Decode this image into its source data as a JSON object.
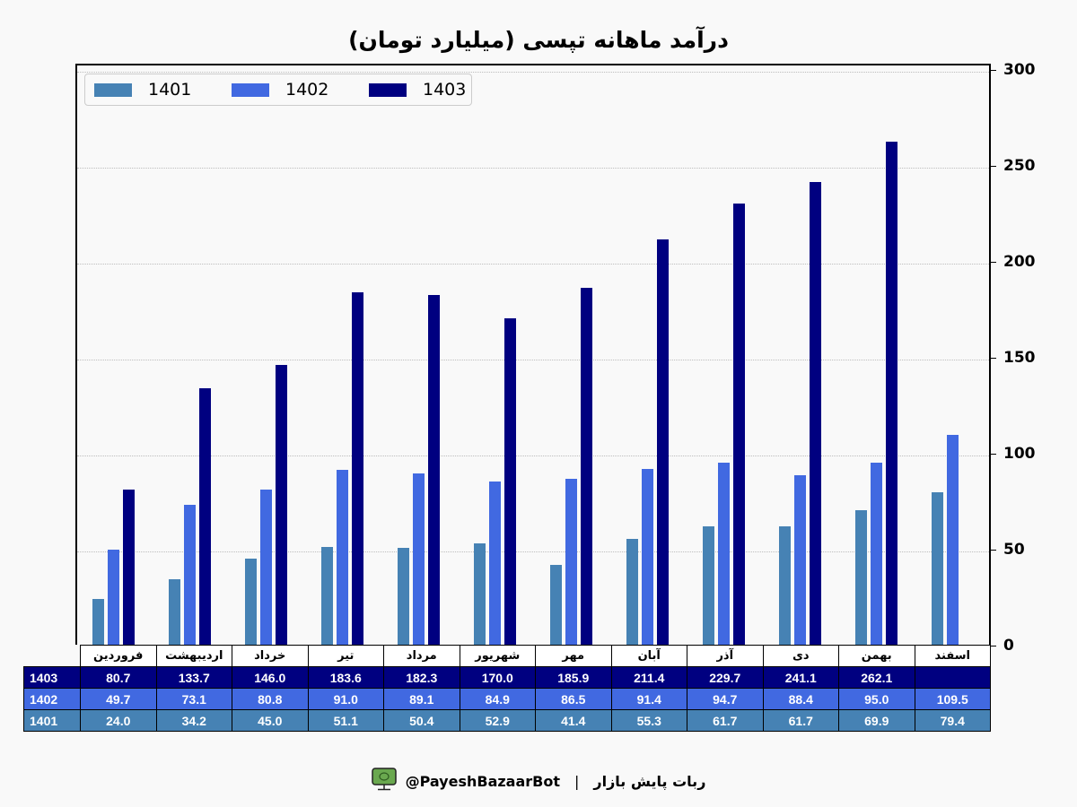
{
  "chart_data": {
    "type": "bar",
    "title": "درآمد ماهانه تپسی (میلیارد تومان)",
    "xlabel": "",
    "ylabel": "",
    "ylim": [
      0,
      300
    ],
    "yticks": [
      0,
      50,
      100,
      150,
      200,
      250,
      300
    ],
    "grid": true,
    "legend_position": "upper left",
    "categories": [
      "فروردین",
      "اردیبهشت",
      "خرداد",
      "تیر",
      "مرداد",
      "شهریور",
      "مهر",
      "آبان",
      "آذر",
      "دی",
      "بهمن",
      "اسفند"
    ],
    "series": [
      {
        "name": "1401",
        "color": "#4682b4",
        "values": [
          24.0,
          34.2,
          45.0,
          51.1,
          50.4,
          52.9,
          41.4,
          55.3,
          61.7,
          61.7,
          69.9,
          79.4
        ]
      },
      {
        "name": "1402",
        "color": "#4169e1",
        "values": [
          49.7,
          73.1,
          80.8,
          91.0,
          89.1,
          84.9,
          86.5,
          91.4,
          94.7,
          88.4,
          95.0,
          109.5
        ]
      },
      {
        "name": "1403",
        "color": "#000080",
        "values": [
          80.7,
          133.7,
          146.0,
          183.6,
          182.3,
          170.0,
          185.9,
          211.4,
          229.7,
          241.1,
          262.1,
          null
        ]
      }
    ]
  },
  "title": "درآمد ماهانه تپسی (میلیارد تومان)",
  "yaxis": {
    "ticks": [
      "0",
      "50",
      "100",
      "150",
      "200",
      "250",
      "300"
    ]
  },
  "legend": {
    "items": [
      {
        "label": "1401",
        "color": "#4682b4"
      },
      {
        "label": "1402",
        "color": "#4169e1"
      },
      {
        "label": "1403",
        "color": "#000080"
      }
    ]
  },
  "table": {
    "header": [
      "فروردین",
      "اردیبهشت",
      "خرداد",
      "تیر",
      "مرداد",
      "شهریور",
      "مهر",
      "آبان",
      "آذر",
      "دی",
      "بهمن",
      "اسفند"
    ],
    "rows": [
      {
        "label": "1403",
        "color": "#000080",
        "cells": [
          "80.7",
          "133.7",
          "146.0",
          "183.6",
          "182.3",
          "170.0",
          "185.9",
          "211.4",
          "229.7",
          "241.1",
          "262.1",
          ""
        ]
      },
      {
        "label": "1402",
        "color": "#4169e1",
        "cells": [
          "49.7",
          "73.1",
          "80.8",
          "91.0",
          "89.1",
          "84.9",
          "86.5",
          "91.4",
          "94.7",
          "88.4",
          "95.0",
          "109.5"
        ]
      },
      {
        "label": "1401",
        "color": "#4682b4",
        "cells": [
          "24.0",
          "34.2",
          "45.0",
          "51.1",
          "50.4",
          "52.9",
          "41.4",
          "55.3",
          "61.7",
          "61.7",
          "69.9",
          "79.4"
        ]
      }
    ]
  },
  "footer": {
    "icon": "monitor-icon",
    "handle": "@PayeshBazaarBot",
    "separator": "|",
    "bot_name": "ربات پایش بازار"
  }
}
